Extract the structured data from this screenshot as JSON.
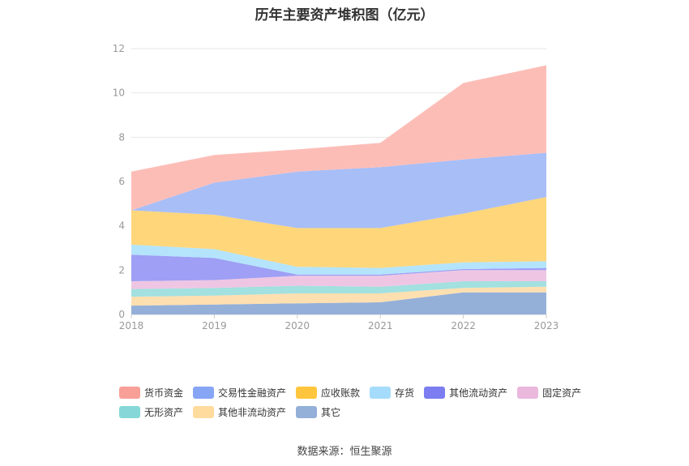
{
  "chart_data": {
    "type": "area",
    "stacked": true,
    "title": "历年主要资产堆积图（亿元）",
    "xlabel": "",
    "ylabel": "",
    "ylim": [
      0,
      12
    ],
    "yticks": [
      0,
      2,
      4,
      6,
      8,
      10,
      12
    ],
    "grid": true,
    "legend_position": "bottom",
    "categories": [
      "2018",
      "2019",
      "2020",
      "2021",
      "2022",
      "2023"
    ],
    "series": [
      {
        "name": "其它",
        "color": "#94b0d9",
        "values": [
          0.4,
          0.45,
          0.5,
          0.55,
          1.0,
          1.0
        ]
      },
      {
        "name": "其他非流动资产",
        "color": "#fedfb0",
        "values": [
          0.4,
          0.4,
          0.45,
          0.4,
          0.2,
          0.25
        ]
      },
      {
        "name": "无形资产",
        "color": "#a3e0e0",
        "values": [
          0.35,
          0.35,
          0.35,
          0.3,
          0.3,
          0.25
        ]
      },
      {
        "name": "固定资产",
        "color": "#eec6e3",
        "values": [
          0.35,
          0.35,
          0.45,
          0.5,
          0.5,
          0.5
        ]
      },
      {
        "name": "其他流动资产",
        "color": "#9e9ff5",
        "values": [
          1.2,
          1.0,
          0.05,
          0.05,
          0.05,
          0.1
        ]
      },
      {
        "name": "存货",
        "color": "#b3e4fc",
        "values": [
          0.45,
          0.4,
          0.35,
          0.3,
          0.3,
          0.3
        ]
      },
      {
        "name": "应收账款",
        "color": "#ffd67a",
        "values": [
          1.55,
          1.55,
          1.75,
          1.8,
          2.2,
          2.9
        ]
      },
      {
        "name": "交易性金融资产",
        "color": "#a8bef7",
        "values": [
          0.0,
          1.45,
          2.55,
          2.75,
          2.45,
          2.0
        ]
      },
      {
        "name": "货币资金",
        "color": "#fdbdb7",
        "values": [
          1.75,
          1.25,
          1.0,
          1.1,
          3.45,
          3.95
        ]
      }
    ],
    "legend_order": [
      "货币资金",
      "交易性金融资产",
      "应收账款",
      "存货",
      "其他流动资产",
      "固定资产",
      "无形资产",
      "其他非流动资产",
      "其它"
    ],
    "legend_colors": {
      "货币资金": "#f8a097",
      "交易性金融资产": "#87a5f5",
      "应收账款": "#ffc53d",
      "存货": "#a6dcfb",
      "其他流动资产": "#7b7df0",
      "固定资产": "#eab8dc",
      "无形资产": "#86d8d8",
      "其他非流动资产": "#ffdb9e",
      "其它": "#94b0d9"
    }
  },
  "legend": {
    "row1": [
      {
        "label": "货币资金",
        "color": "#f8a097"
      },
      {
        "label": "交易性金融资产",
        "color": "#87a5f5"
      },
      {
        "label": "应收账款",
        "color": "#ffc53d"
      },
      {
        "label": "存货",
        "color": "#a6dcfb"
      },
      {
        "label": "其他流动资产",
        "color": "#7b7df0"
      },
      {
        "label": "固定资产",
        "color": "#eab8dc"
      }
    ],
    "row2": [
      {
        "label": "无形资产",
        "color": "#86d8d8"
      },
      {
        "label": "其他非流动资产",
        "color": "#ffdb9e"
      },
      {
        "label": "其它",
        "color": "#94b0d9"
      }
    ]
  },
  "source_note": "数据来源：恒生聚源"
}
